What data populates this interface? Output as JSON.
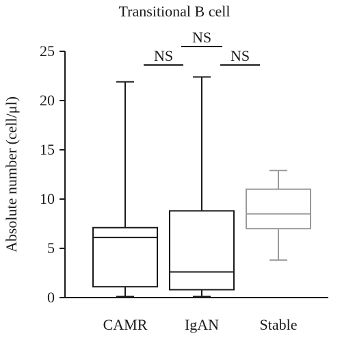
{
  "chart_data": {
    "type": "boxplot",
    "title": "Transitional B cell",
    "xlabel": "",
    "ylabel": "Absolute number (cell/μl)",
    "ylim": [
      0,
      25
    ],
    "yticks": [
      0,
      5,
      10,
      15,
      20,
      25
    ],
    "grid": false,
    "legend": "none",
    "categories": [
      "CAMR",
      "IgAN",
      "Stable"
    ],
    "boxes": [
      {
        "category": "CAMR",
        "min": 0.1,
        "q1": 1.1,
        "median": 6.1,
        "q3": 7.1,
        "max": 21.9,
        "color": "#1a1a1a"
      },
      {
        "category": "IgAN",
        "min": 0.1,
        "q1": 0.8,
        "median": 2.6,
        "q3": 8.8,
        "max": 22.4,
        "color": "#1a1a1a"
      },
      {
        "category": "Stable",
        "min": 3.8,
        "q1": 7.0,
        "median": 8.5,
        "q3": 11.0,
        "max": 12.9,
        "color": "#999999"
      }
    ],
    "annotations": [
      {
        "text": "NS",
        "from": "CAMR",
        "to": "IgAN",
        "level": 1
      },
      {
        "text": "NS",
        "from": "CAMR",
        "to": "Stable",
        "level": 2
      },
      {
        "text": "NS",
        "from": "IgAN",
        "to": "Stable",
        "level": 1
      }
    ]
  }
}
